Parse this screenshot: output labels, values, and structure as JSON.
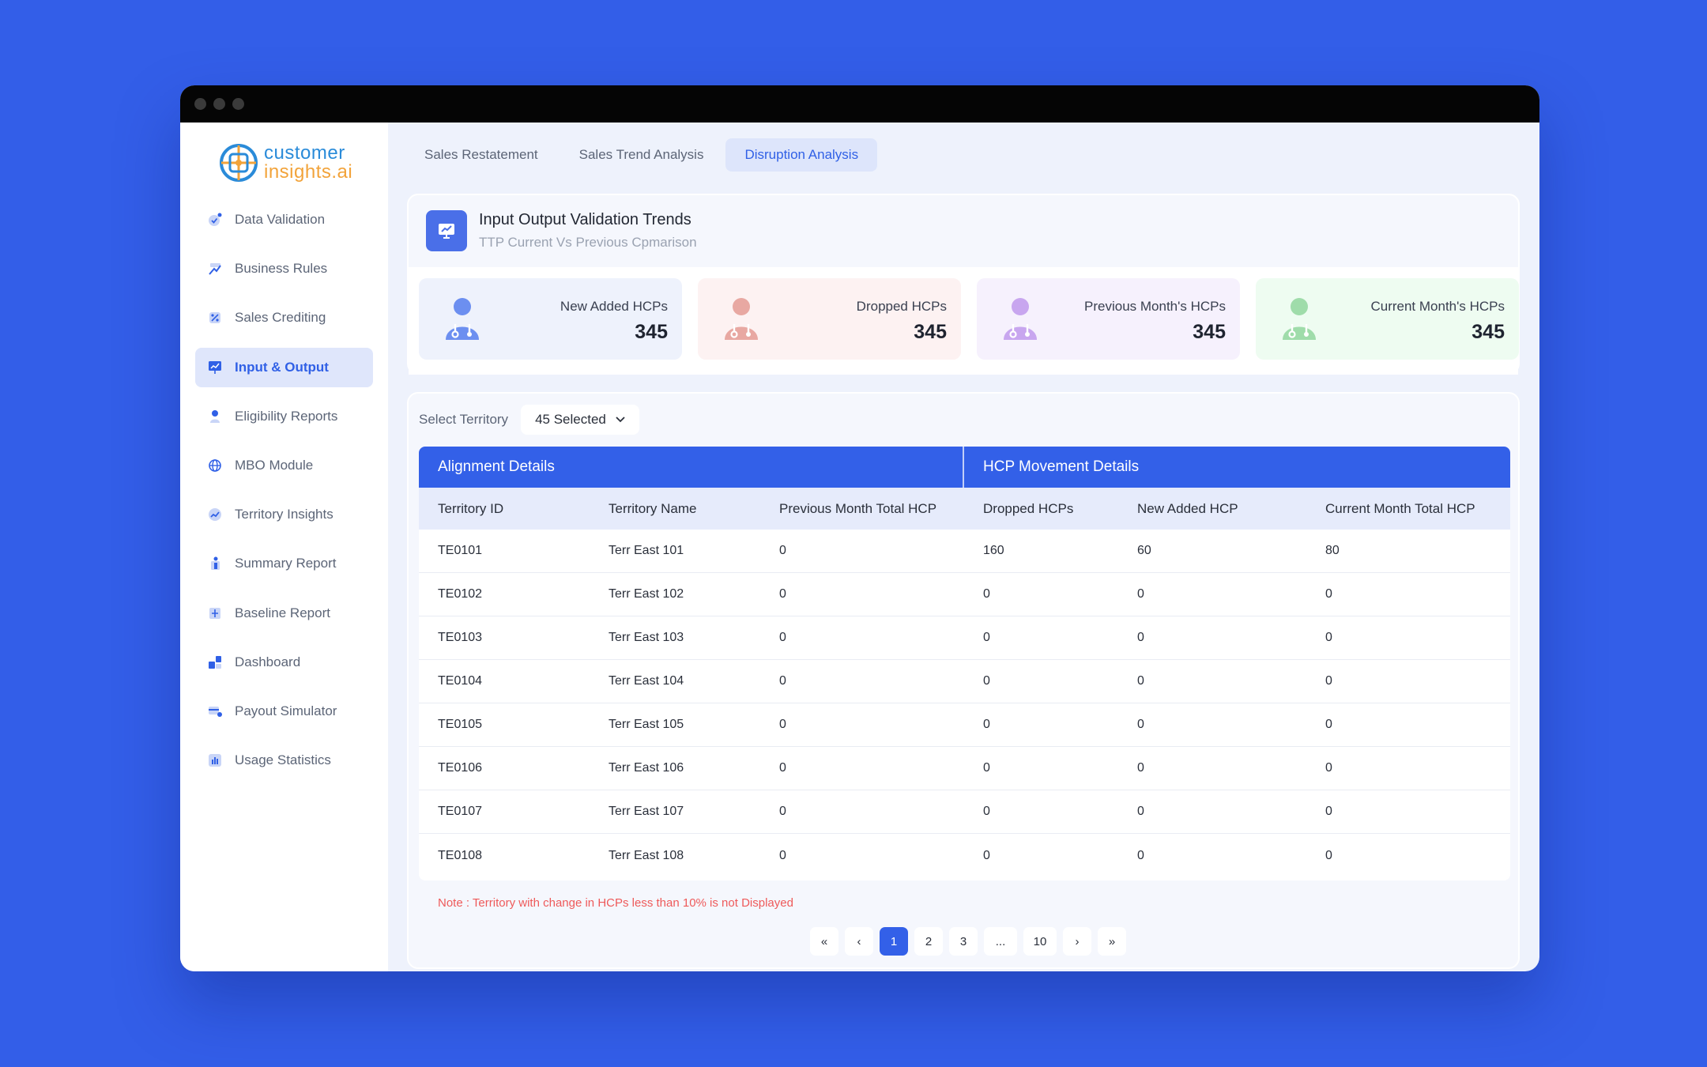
{
  "brand": {
    "line1": "customer",
    "line2": "insights.ai"
  },
  "sidebar": {
    "items": [
      {
        "label": "Data Validation",
        "icon": "check-circle-icon"
      },
      {
        "label": "Business Rules",
        "icon": "rules-icon"
      },
      {
        "label": "Sales Crediting",
        "icon": "percent-icon"
      },
      {
        "label": "Input & Output",
        "icon": "presentation-chart-icon",
        "active": true
      },
      {
        "label": "Eligibility Reports",
        "icon": "person-icon"
      },
      {
        "label": "MBO Module",
        "icon": "globe-icon"
      },
      {
        "label": "Territory Insights",
        "icon": "trend-icon"
      },
      {
        "label": "Summary Report",
        "icon": "report-icon"
      },
      {
        "label": "Baseline Report",
        "icon": "baseline-icon"
      },
      {
        "label": "Dashboard",
        "icon": "dashboard-icon"
      },
      {
        "label": "Payout Simulator",
        "icon": "simulator-icon"
      },
      {
        "label": "Usage Statistics",
        "icon": "bar-chart-icon"
      }
    ]
  },
  "tabs": [
    {
      "label": "Sales Restatement"
    },
    {
      "label": "Sales Trend Analysis"
    },
    {
      "label": "Disruption Analysis",
      "active": true
    }
  ],
  "summary": {
    "title": "Input Output Validation Trends",
    "subtitle": "TTP Current Vs Previous Cpmarison",
    "stats": [
      {
        "label": "New Added HCPs",
        "value": "345",
        "bg": "#eef2fc",
        "color": "#6c8ff0"
      },
      {
        "label": "Dropped HCPs",
        "value": "345",
        "bg": "#fdf2f2",
        "color": "#e8a8a2"
      },
      {
        "label": "Previous Month's HCPs",
        "value": "345",
        "bg": "#f6f1fd",
        "color": "#c8a6ef"
      },
      {
        "label": "Current Month's HCPs",
        "value": "345",
        "bg": "#eefcf1",
        "color": "#9fdcaa"
      }
    ]
  },
  "filter": {
    "label": "Select Territory",
    "value": "45 Selected"
  },
  "table": {
    "groups": [
      "Alignment Details",
      "HCP  Movement Details"
    ],
    "columns": [
      "Territory ID",
      "Territory Name",
      "Previous Month Total HCP",
      "Dropped HCPs",
      "New Added HCP",
      "Current Month Total HCP"
    ],
    "rows": [
      [
        "TE0101",
        "Terr East 101",
        "0",
        "160",
        "60",
        "80"
      ],
      [
        "TE0102",
        "Terr East 102",
        "0",
        "0",
        "0",
        "0"
      ],
      [
        "TE0103",
        "Terr East 103",
        "0",
        "0",
        "0",
        "0"
      ],
      [
        "TE0104",
        "Terr East 104",
        "0",
        "0",
        "0",
        "0"
      ],
      [
        "TE0105",
        "Terr East 105",
        "0",
        "0",
        "0",
        "0"
      ],
      [
        "TE0106",
        "Terr East 106",
        "0",
        "0",
        "0",
        "0"
      ],
      [
        "TE0107",
        "Terr East 107",
        "0",
        "0",
        "0",
        "0"
      ],
      [
        "TE0108",
        "Terr East 108",
        "0",
        "0",
        "0",
        "0"
      ]
    ]
  },
  "note": "Note : Territory with change in HCPs less than 10% is not Displayed",
  "pagination": {
    "first": "«",
    "prev": "‹",
    "pages": [
      "1",
      "2",
      "3",
      "...",
      "10"
    ],
    "current": "1",
    "next": "›",
    "last": "»"
  }
}
